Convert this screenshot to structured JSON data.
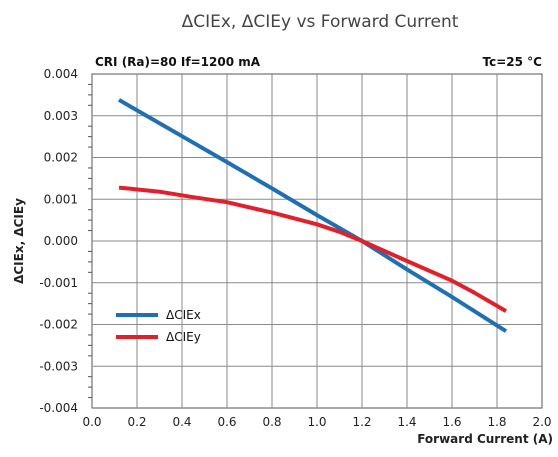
{
  "chart_data": {
    "type": "line",
    "title": "ΔCIEx, ΔCIEy vs Forward Current",
    "xlabel": "Forward Current (A)",
    "ylabel": "ΔCIEx, ΔCIEy",
    "annotations": {
      "left": "CRI (Ra)=80  If=1200 mA",
      "right": "Tc=25 °C"
    },
    "xlim": [
      0.0,
      2.0
    ],
    "ylim": [
      -0.004,
      0.004
    ],
    "x_ticks": [
      "0.0",
      "0.2",
      "0.4",
      "0.6",
      "0.8",
      "1.0",
      "1.2",
      "1.4",
      "1.6",
      "1.8",
      "2.0"
    ],
    "y_ticks": [
      "-0.004",
      "-0.003",
      "-0.002",
      "-0.001",
      "0.000",
      "0.001",
      "0.002",
      "0.003",
      "0.004"
    ],
    "grid": true,
    "legend_position": "lower-left",
    "series": [
      {
        "name": "ΔCIEx",
        "color": "#1f6fb5",
        "points": [
          [
            0.12,
            0.00338
          ],
          [
            0.4,
            0.00251
          ],
          [
            0.6,
            0.00189
          ],
          [
            0.8,
            0.00126
          ],
          [
            1.0,
            0.00062
          ],
          [
            1.2,
            0.0
          ],
          [
            1.4,
            -0.00068
          ],
          [
            1.6,
            -0.00134
          ],
          [
            1.84,
            -0.00216
          ]
        ]
      },
      {
        "name": "ΔCIEy",
        "color": "#e0202a",
        "points": [
          [
            0.12,
            0.00128
          ],
          [
            0.3,
            0.00118
          ],
          [
            0.45,
            0.00105
          ],
          [
            0.6,
            0.00093
          ],
          [
            0.8,
            0.00068
          ],
          [
            1.0,
            0.0004
          ],
          [
            1.1,
            0.00022
          ],
          [
            1.2,
            0.0
          ],
          [
            1.4,
            -0.00048
          ],
          [
            1.6,
            -0.00095
          ],
          [
            1.7,
            -0.00124
          ],
          [
            1.84,
            -0.00168
          ]
        ]
      }
    ]
  }
}
